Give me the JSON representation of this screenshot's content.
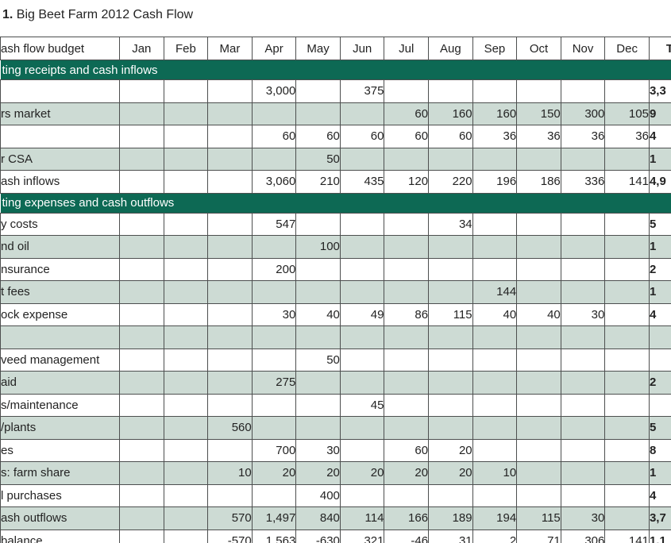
{
  "title": {
    "number": "1.",
    "text": " Big Beet Farm 2012 Cash Flow"
  },
  "colors": {
    "band_background": "#0d6954",
    "band_text": "#ffffff",
    "shaded_row_background": "#cddbd4",
    "grid_line": "#4d4f4f",
    "text": "#232323"
  },
  "table": {
    "header": {
      "label": "ash flow budget",
      "months": [
        "Jan",
        "Feb",
        "Mar",
        "Apr",
        "May",
        "Jun",
        "Jul",
        "Aug",
        "Sep",
        "Oct",
        "Nov",
        "Dec"
      ],
      "total": "To"
    },
    "rows": [
      {
        "type": "band",
        "label": "ting receipts and cash inflows"
      },
      {
        "type": "data",
        "shade": false,
        "label": "",
        "values": [
          "",
          "",
          "",
          "3,000",
          "",
          "375",
          "",
          "",
          "",
          "",
          "",
          ""
        ],
        "total": "3,3"
      },
      {
        "type": "data",
        "shade": true,
        "label": "rs market",
        "values": [
          "",
          "",
          "",
          "",
          "",
          "",
          "60",
          "160",
          "160",
          "150",
          "300",
          "105"
        ],
        "total": "9"
      },
      {
        "type": "data",
        "shade": false,
        "label": "",
        "values": [
          "",
          "",
          "",
          "60",
          "60",
          "60",
          "60",
          "60",
          "36",
          "36",
          "36",
          "36"
        ],
        "total": "4"
      },
      {
        "type": "data",
        "shade": true,
        "label": "r CSA",
        "values": [
          "",
          "",
          "",
          "",
          "50",
          "",
          "",
          "",
          "",
          "",
          "",
          ""
        ],
        "total": "1"
      },
      {
        "type": "data",
        "shade": false,
        "label": "ash inflows",
        "values": [
          "",
          "",
          "",
          "3,060",
          "210",
          "435",
          "120",
          "220",
          "196",
          "186",
          "336",
          "141"
        ],
        "total": "4,9"
      },
      {
        "type": "band",
        "label": "ting expenses and cash outflows"
      },
      {
        "type": "data",
        "shade": false,
        "label": "y costs",
        "values": [
          "",
          "",
          "",
          "547",
          "",
          "",
          "",
          "34",
          "",
          "",
          "",
          ""
        ],
        "total": "5"
      },
      {
        "type": "data",
        "shade": true,
        "label": "nd oil",
        "values": [
          "",
          "",
          "",
          "",
          "100",
          "",
          "",
          "",
          "",
          "",
          "",
          ""
        ],
        "total": "1"
      },
      {
        "type": "data",
        "shade": false,
        "label": "nsurance",
        "values": [
          "",
          "",
          "",
          "200",
          "",
          "",
          "",
          "",
          "",
          "",
          "",
          ""
        ],
        "total": "2"
      },
      {
        "type": "data",
        "shade": true,
        "label": "t fees",
        "values": [
          "",
          "",
          "",
          "",
          "",
          "",
          "",
          "",
          "144",
          "",
          "",
          ""
        ],
        "total": "1"
      },
      {
        "type": "data",
        "shade": false,
        "label": "ock expense",
        "values": [
          "",
          "",
          "",
          "30",
          "40",
          "49",
          "86",
          "115",
          "40",
          "40",
          "30",
          ""
        ],
        "total": "4"
      },
      {
        "type": "data",
        "shade": true,
        "label": "",
        "values": [
          "",
          "",
          "",
          "",
          "",
          "",
          "",
          "",
          "",
          "",
          "",
          ""
        ],
        "total": ""
      },
      {
        "type": "data",
        "shade": false,
        "label": "veed management",
        "values": [
          "",
          "",
          "",
          "",
          "50",
          "",
          "",
          "",
          "",
          "",
          "",
          ""
        ],
        "total": ""
      },
      {
        "type": "data",
        "shade": true,
        "label": "aid",
        "values": [
          "",
          "",
          "",
          "275",
          "",
          "",
          "",
          "",
          "",
          "",
          "",
          ""
        ],
        "total": "2"
      },
      {
        "type": "data",
        "shade": false,
        "label": "s/maintenance",
        "values": [
          "",
          "",
          "",
          "",
          "",
          "45",
          "",
          "",
          "",
          "",
          "",
          ""
        ],
        "total": ""
      },
      {
        "type": "data",
        "shade": true,
        "label": "/plants",
        "values": [
          "",
          "",
          "560",
          "",
          "",
          "",
          "",
          "",
          "",
          "",
          "",
          ""
        ],
        "total": "5"
      },
      {
        "type": "data",
        "shade": false,
        "label": "es",
        "values": [
          "",
          "",
          "",
          "700",
          "30",
          "",
          "60",
          "20",
          "",
          "",
          "",
          ""
        ],
        "total": "8"
      },
      {
        "type": "data",
        "shade": true,
        "label": "s: farm share",
        "values": [
          "",
          "",
          "10",
          "20",
          "20",
          "20",
          "20",
          "20",
          "10",
          "",
          "",
          ""
        ],
        "total": "1"
      },
      {
        "type": "data",
        "shade": false,
        "label": "l purchases",
        "values": [
          "",
          "",
          "",
          "",
          "400",
          "",
          "",
          "",
          "",
          "",
          "",
          ""
        ],
        "total": "4"
      },
      {
        "type": "data",
        "shade": true,
        "label": "ash outflows",
        "values": [
          "",
          "",
          "570",
          "1,497",
          "840",
          "114",
          "166",
          "189",
          "194",
          "115",
          "30",
          ""
        ],
        "total": "3,7"
      },
      {
        "type": "data",
        "shade": false,
        "label": "balance",
        "values": [
          "",
          "",
          "-570",
          "1,563",
          "-630",
          "321",
          "-46",
          "31",
          "2",
          "71",
          "306",
          "141"
        ],
        "total": "1,1"
      }
    ]
  }
}
